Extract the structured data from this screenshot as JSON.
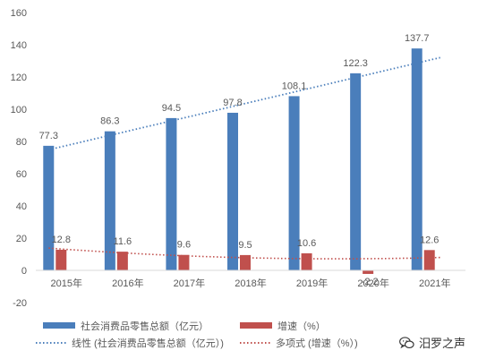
{
  "chart_data": {
    "type": "bar",
    "categories": [
      "2015年",
      "2016年",
      "2017年",
      "2018年",
      "2019年",
      "2020年",
      "2021年"
    ],
    "series": [
      {
        "name": "社会消费品零售总额（亿元）",
        "values": [
          77.3,
          86.3,
          94.5,
          97.8,
          108.1,
          122.3,
          137.7
        ],
        "color": "#4a7ebb"
      },
      {
        "name": "增速（%）",
        "values": [
          12.8,
          11.6,
          9.6,
          9.5,
          10.6,
          -2.2,
          12.6
        ],
        "color": "#c0504d"
      }
    ],
    "trendlines": [
      {
        "name": "线性 (社会消费品零售总额（亿元）)",
        "type": "linear",
        "of": "社会消费品零售总额（亿元）",
        "color": "#4a7ebb"
      },
      {
        "name": "多项式 (增速（%）)",
        "type": "polynomial",
        "of": "增速（%）",
        "color": "#c0504d"
      }
    ],
    "ylim": [
      -20,
      160
    ],
    "yticks": [
      -20,
      0,
      20,
      40,
      60,
      80,
      100,
      120,
      140,
      160
    ],
    "grid": false,
    "legend_position": "bottom"
  },
  "watermark": {
    "text": "汨罗之声",
    "icon": "wechat-icon"
  }
}
